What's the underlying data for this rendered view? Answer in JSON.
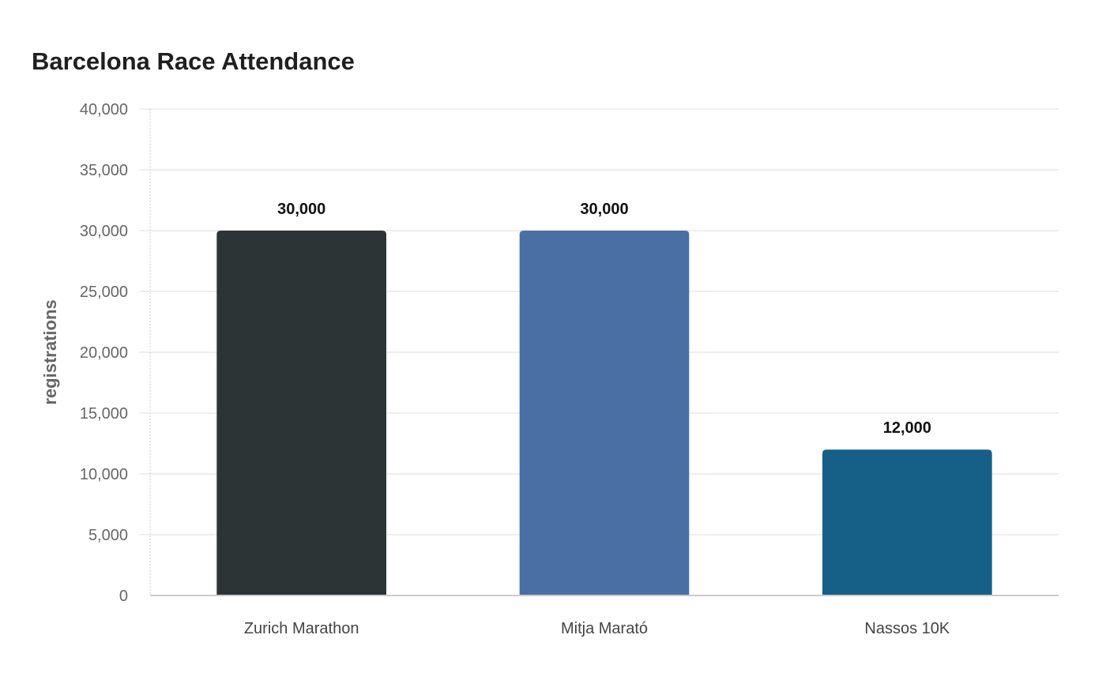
{
  "chart_data": {
    "type": "bar",
    "title": "Barcelona Race Attendance",
    "xlabel": "",
    "ylabel": "registrations",
    "categories": [
      "Zurich Marathon",
      "Mitja Marató",
      "Nassos 10K"
    ],
    "values": [
      30000,
      30000,
      12000
    ],
    "value_labels": [
      "30,000",
      "30,000",
      "12,000"
    ],
    "colors": [
      "#2d3436",
      "#4a6fa5",
      "#166088"
    ],
    "ylim": [
      0,
      40000
    ],
    "yticks": [
      0,
      5000,
      10000,
      15000,
      20000,
      25000,
      30000,
      35000,
      40000
    ],
    "ytick_labels": [
      "0",
      "5,000",
      "10,000",
      "15,000",
      "20,000",
      "25,000",
      "30,000",
      "35,000",
      "40,000"
    ],
    "grid": true,
    "legend": "none"
  }
}
